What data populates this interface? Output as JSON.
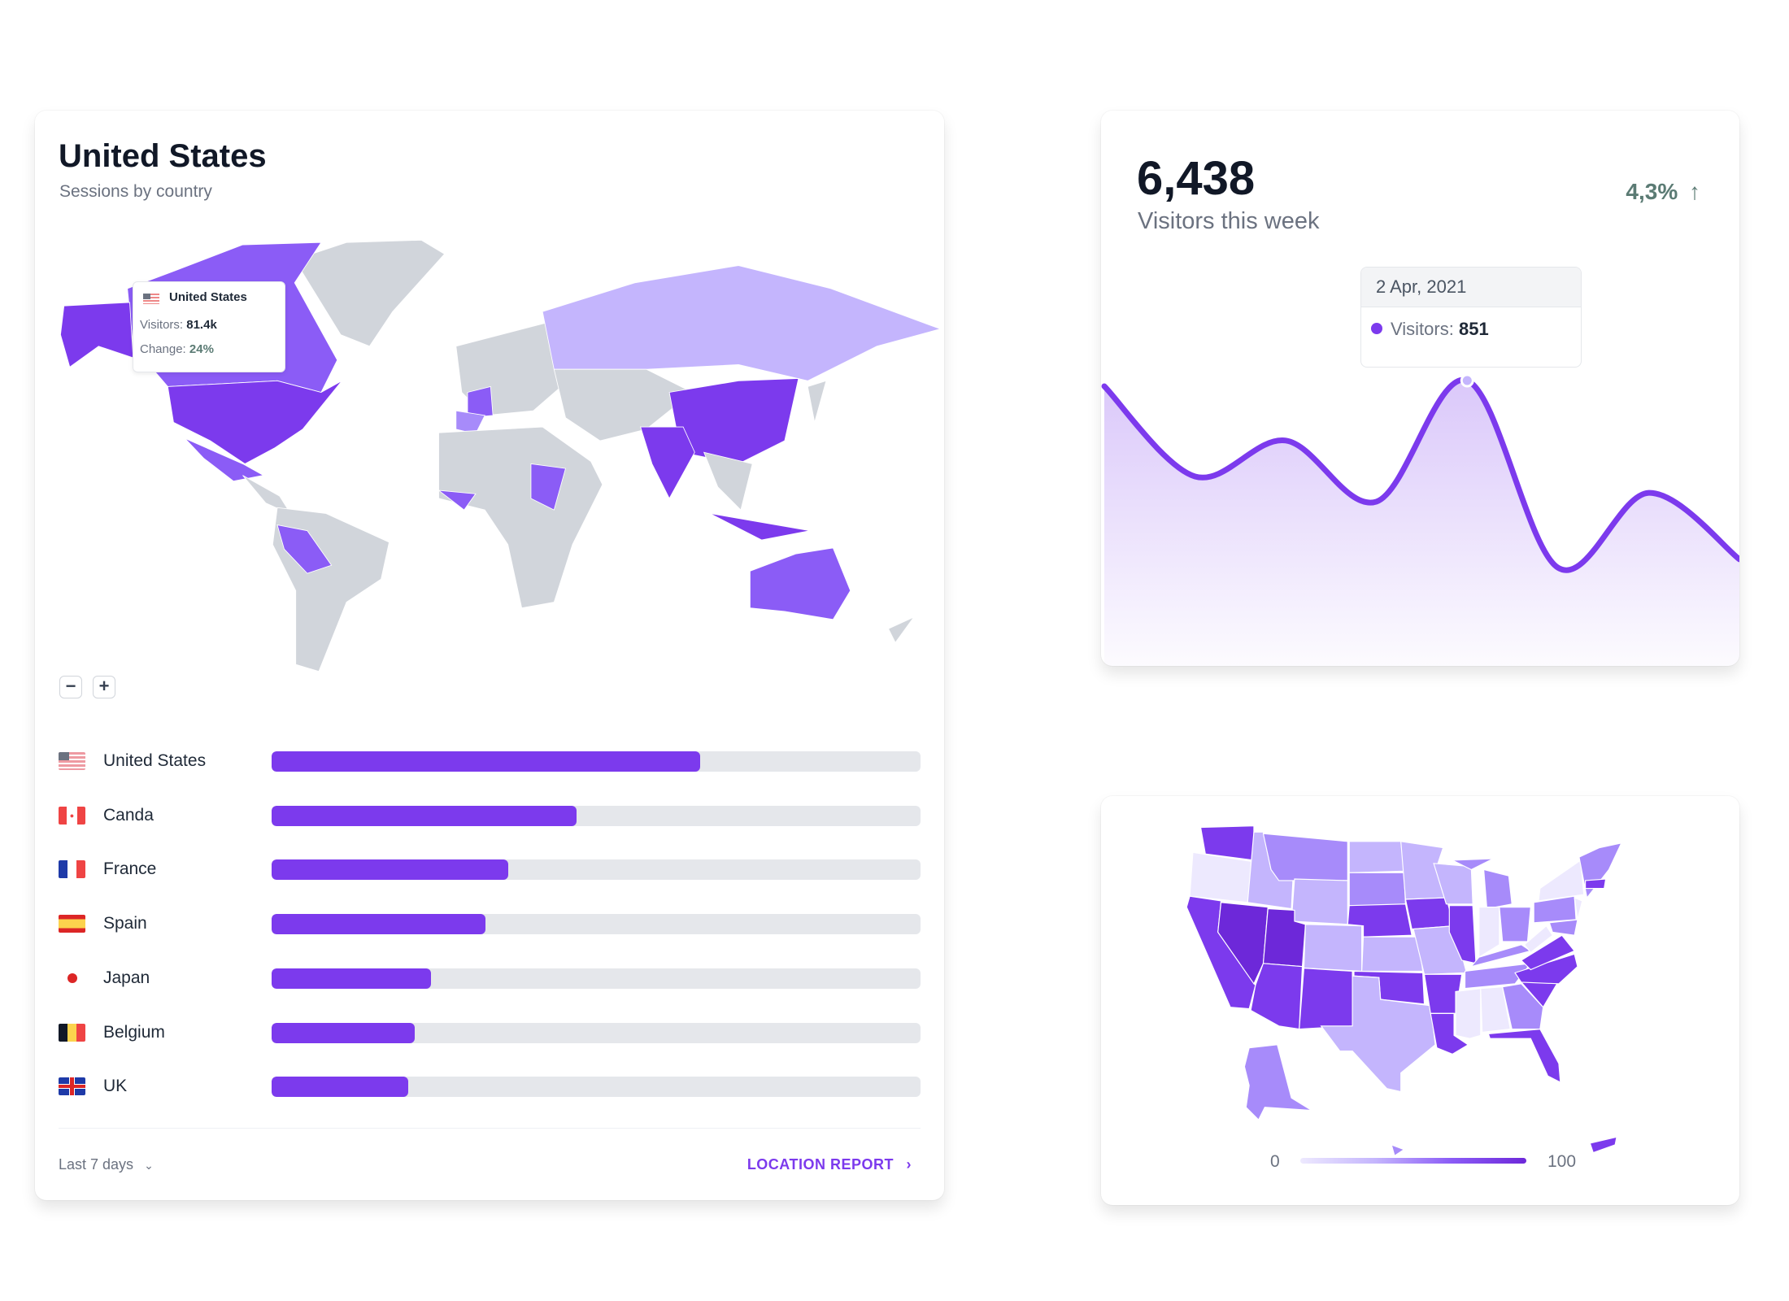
{
  "map_card": {
    "title": "United States",
    "subtitle": "Sessions by country",
    "tooltip": {
      "country": "United States",
      "visitors_label": "Visitors:",
      "visitors_value": "81.4k",
      "change_label": "Change:",
      "change_value": "24%"
    },
    "zoom_out_label": "−",
    "zoom_in_label": "+",
    "countries": [
      {
        "name": "United States",
        "flag": "flag-us",
        "share": 66
      },
      {
        "name": "Canda",
        "flag": "flag-ca",
        "share": 47
      },
      {
        "name": "France",
        "flag": "flag-fr",
        "share": 36.5
      },
      {
        "name": "Spain",
        "flag": "flag-es",
        "share": 33
      },
      {
        "name": "Japan",
        "flag": "flag-jp",
        "share": 24.5
      },
      {
        "name": "Belgium",
        "flag": "flag-be",
        "share": 22
      },
      {
        "name": "UK",
        "flag": "flag-uk",
        "share": 21
      }
    ],
    "period": "Last 7 days",
    "report_link": "LOCATION REPORT"
  },
  "visitors_card": {
    "value": "6,438",
    "label": "Visitors this week",
    "change": "4,3%",
    "change_icon": "arrow-up-icon",
    "tooltip": {
      "date": "2 Apr, 2021",
      "label": "Visitors:",
      "value": "851"
    },
    "points": [
      834,
      565,
      672,
      490,
      851,
      293,
      516,
      318
    ],
    "highlight_index": 4
  },
  "us_card": {
    "legend_min": "0",
    "legend_max": "100"
  },
  "colors": {
    "accent": "#7c3aed",
    "dark": "#6d28d9",
    "mid": "#a78bfa",
    "light": "#c4b5fd",
    "pale": "#ede9fe",
    "land": "#d1d5db",
    "positive": "#5b7b74"
  }
}
